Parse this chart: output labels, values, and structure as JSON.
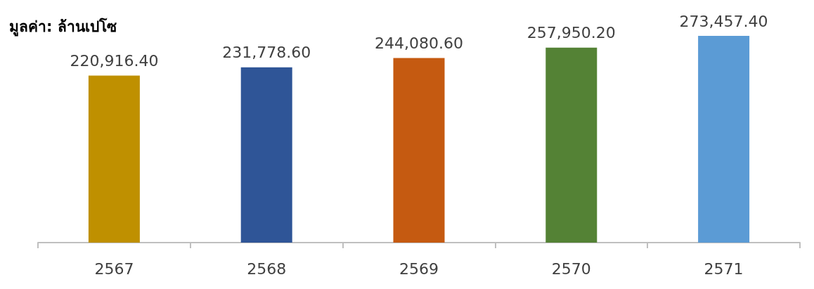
{
  "chart_data": {
    "type": "bar",
    "ylabel": "มูลค่า: ล้านเปโซ",
    "categories": [
      "2567",
      "2568",
      "2569",
      "2570",
      "2571"
    ],
    "values": [
      220916.4,
      231778.6,
      244080.6,
      257950.2,
      273457.4
    ],
    "value_labels": [
      "220,916.40",
      "231,778.60",
      "244,080.60",
      "257,950.20",
      "273,457.40"
    ],
    "colors": [
      "#bf9000",
      "#2f5597",
      "#c55a11",
      "#548235",
      "#5b9bd5"
    ]
  }
}
